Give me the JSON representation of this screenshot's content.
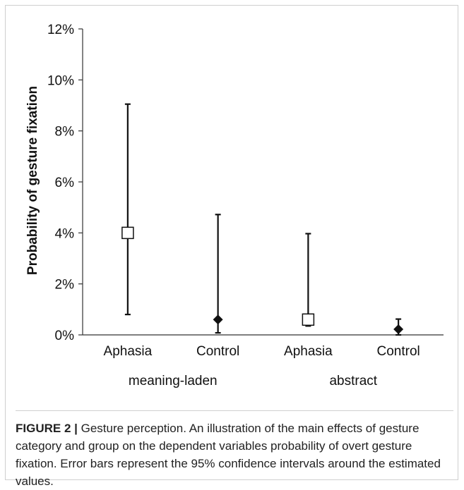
{
  "chart_data": {
    "type": "scatter",
    "ylabel": "Probability of gesture fixation",
    "ylim": [
      0,
      12
    ],
    "yticks": [
      0,
      2,
      4,
      6,
      8,
      10,
      12
    ],
    "ytick_labels": [
      "0%",
      "2%",
      "4%",
      "6%",
      "8%",
      "10%",
      "12%"
    ],
    "categories": [
      "Aphasia",
      "Control",
      "Aphasia",
      "Control"
    ],
    "groups": [
      "meaning-laden",
      "abstract"
    ],
    "points": [
      {
        "category": "Aphasia",
        "group": "meaning-laden",
        "value": 4.0,
        "ci_low": 0.8,
        "ci_high": 9.05,
        "marker": "open-square"
      },
      {
        "category": "Control",
        "group": "meaning-laden",
        "value": 0.6,
        "ci_low": 0.08,
        "ci_high": 4.72,
        "marker": "filled-diamond"
      },
      {
        "category": "Aphasia",
        "group": "abstract",
        "value": 0.6,
        "ci_low": 0.35,
        "ci_high": 3.97,
        "marker": "open-square"
      },
      {
        "category": "Control",
        "group": "abstract",
        "value": 0.22,
        "ci_low": 0.0,
        "ci_high": 0.62,
        "marker": "filled-diamond"
      }
    ],
    "grid": false
  },
  "caption": {
    "label": "FIGURE 2 |",
    "text": " Gesture perception. An illustration of the main effects of gesture category and group on the dependent variables probability of overt gesture fixation. Error bars represent the 95% confidence intervals around the estimated values."
  }
}
